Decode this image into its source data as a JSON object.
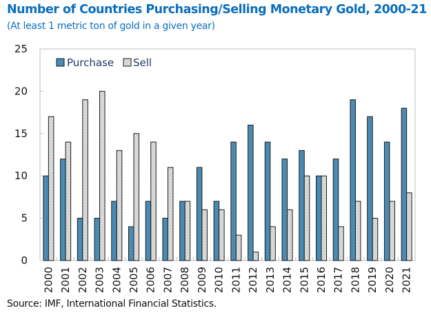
{
  "chart_data": {
    "type": "bar",
    "title": "Number of Countries Purchasing/Selling Monetary Gold, 2000-21",
    "subtitle": "(At least 1 metric ton of gold in a given year)",
    "source": "Source: IMF, International Financial Statistics.",
    "xlabel": "",
    "ylabel": "",
    "ylim": [
      0,
      25
    ],
    "yticks": [
      "0",
      "5",
      "10",
      "15",
      "20",
      "25"
    ],
    "grid": false,
    "legend_position": "top-left",
    "categories": [
      "2000",
      "2001",
      "2002",
      "2003",
      "2004",
      "2005",
      "2006",
      "2007",
      "2008",
      "2009",
      "2010",
      "2011",
      "2012",
      "2013",
      "2014",
      "2015",
      "2016",
      "2017",
      "2018",
      "2019",
      "2020",
      "2021"
    ],
    "series": [
      {
        "name": "Purchase",
        "color": "#4a8bb4",
        "pattern": "solid",
        "values": [
          10,
          12,
          5,
          5,
          7,
          4,
          7,
          5,
          7,
          11,
          7,
          14,
          16,
          14,
          12,
          13,
          10,
          12,
          19,
          17,
          14,
          18
        ]
      },
      {
        "name": "Sell",
        "color": "#d9d9d9",
        "pattern": "hatched",
        "values": [
          17,
          14,
          19,
          20,
          13,
          15,
          14,
          11,
          7,
          6,
          6,
          3,
          1,
          4,
          6,
          10,
          10,
          4,
          7,
          5,
          7,
          8
        ]
      }
    ]
  }
}
